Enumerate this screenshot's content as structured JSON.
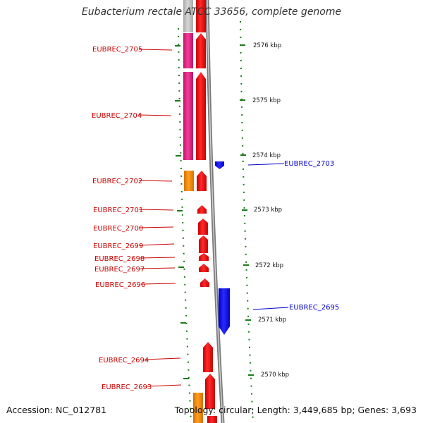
{
  "title": "Eubacterium rectale ATCC 33656, complete genome",
  "footer": {
    "accession": "Accession: NC_012781",
    "summary": "Topology: circular; Length: 3,449,685 bp; Genes: 3,693"
  },
  "colors": {
    "cds": "#ff0000",
    "gene_pink": "#e8197d",
    "gene_orange": "#ff8c00",
    "gene_gray": "#c0c0c0",
    "reverse_strand": "#0000ff",
    "label_forward": "#cc0000",
    "label_reverse": "#0000cc",
    "tick": "#1a7a1a",
    "backbone": "#888888"
  },
  "scale_labels": [
    "2576 kbp",
    "2575 kbp",
    "2574 kbp",
    "2573 kbp",
    "2572 kbp",
    "2571 kbp",
    "2570 kbp"
  ],
  "genes_left": [
    {
      "id": "EUBREC_2705"
    },
    {
      "id": "EUBREC_2704"
    },
    {
      "id": "EUBREC_2702"
    },
    {
      "id": "EUBREC_2701"
    },
    {
      "id": "EUBREC_2700"
    },
    {
      "id": "EUBREC_2699"
    },
    {
      "id": "EUBREC_2698"
    },
    {
      "id": "EUBREC_2697"
    },
    {
      "id": "EUBREC_2696"
    },
    {
      "id": "EUBREC_2694"
    },
    {
      "id": "EUBREC_2693"
    }
  ],
  "genes_right": [
    {
      "id": "EUBREC_2703"
    },
    {
      "id": "EUBREC_2695"
    }
  ]
}
